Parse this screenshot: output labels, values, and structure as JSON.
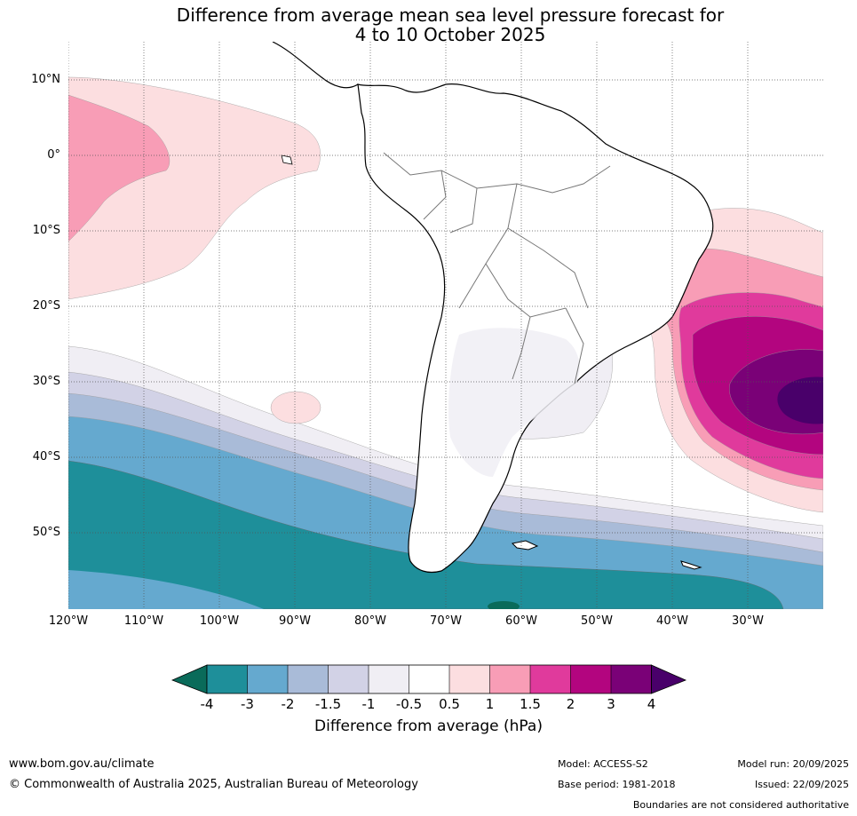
{
  "title": {
    "line1": "Difference from average mean sea level pressure forecast for",
    "line2": "4 to 10 October 2025"
  },
  "axes": {
    "lat_labels": [
      "10°N",
      "0°",
      "10°S",
      "20°S",
      "30°S",
      "40°S",
      "50°S"
    ],
    "lon_labels": [
      "120°W",
      "110°W",
      "100°W",
      "90°W",
      "80°W",
      "70°W",
      "60°W",
      "50°W",
      "40°W",
      "30°W"
    ]
  },
  "chart_data": {
    "type": "filled-contour map",
    "variable": "mean sea level pressure anomaly",
    "units": "hPa",
    "lon_range": [
      -120,
      -20
    ],
    "lat_range": [
      -60,
      15
    ],
    "features": [
      {
        "region": "South Atlantic east of Brazil (~25°W, 33°S)",
        "max_anomaly": "4"
      },
      {
        "region": "Eastern Pacific near equator (~120°W, 0°)",
        "max_anomaly": "1 to 1.5"
      },
      {
        "region": "Southern Ocean / Drake Passage",
        "min_anomaly": "-3 to -4"
      }
    ]
  },
  "colorbar": {
    "label": "Difference from average (hPa)",
    "ticks": [
      "-4",
      "-3",
      "-2",
      "-1.5",
      "-1",
      "-0.5",
      "0.5",
      "1",
      "1.5",
      "2",
      "3",
      "4"
    ],
    "colors": {
      "below_min": "#0a6b5a",
      "lt_-3": "#1e8f9a",
      "-3_-2": "#65a9cf",
      "-2_-1.5": "#a9bbd8",
      "-1.5_-1": "#d2d2e6",
      "-1_-0.5": "#f0eef4",
      "-0.5_0.5": "#ffffff",
      "0.5_1": "#fcdee0",
      "1_1.5": "#f89db6",
      "1.5_2": "#e03a9c",
      "2_3": "#b3057f",
      "3_4": "#7a0177",
      "above_max": "#49006a"
    }
  },
  "footer": {
    "url": "www.bom.gov.au/climate",
    "copyright": "© Commonwealth of Australia 2025, Australian Bureau of Meteorology",
    "model": "Model: ACCESS-S2",
    "base_period": "Base period: 1981-2018",
    "model_run": "Model run: 20/09/2025",
    "issued": "Issued: 22/09/2025",
    "disclaimer": "Boundaries are not considered authoritative"
  }
}
